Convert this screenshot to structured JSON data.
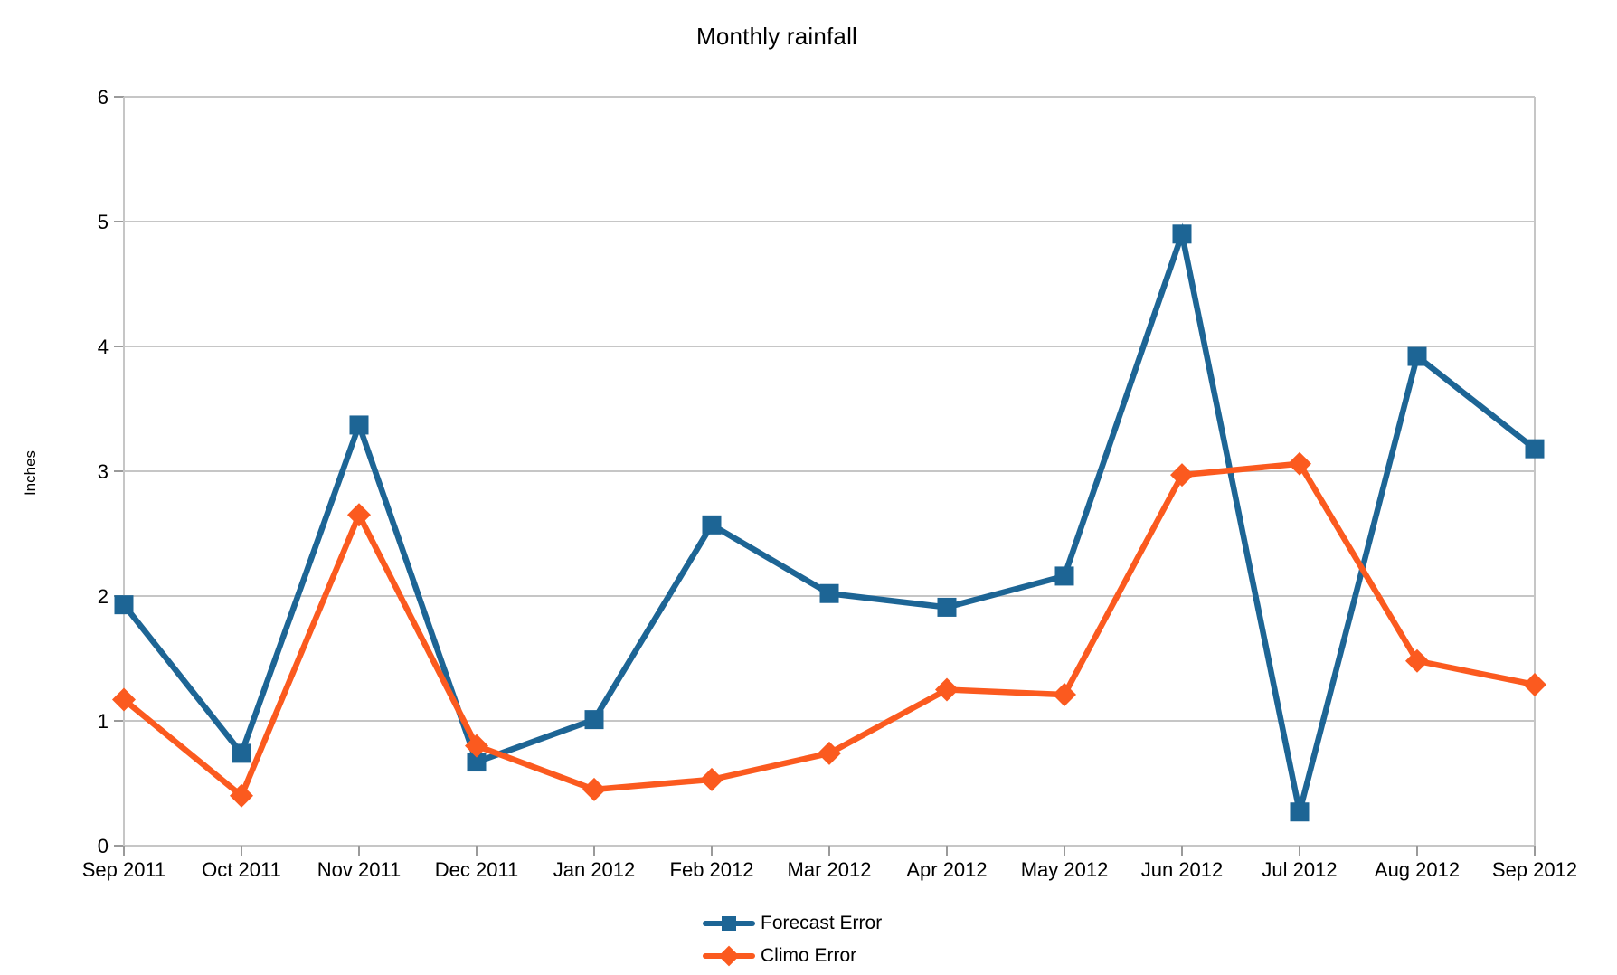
{
  "chart_data": {
    "type": "line",
    "title": "Monthly rainfall",
    "xlabel": "",
    "ylabel": "Inches",
    "ylim": [
      0,
      6
    ],
    "yticks": [
      0,
      1,
      2,
      3,
      4,
      5,
      6
    ],
    "grid": true,
    "legend_position": "bottom-center",
    "categories": [
      "Sep 2011",
      "Oct 2011",
      "Nov 2011",
      "Dec 2011",
      "Jan 2012",
      "Feb 2012",
      "Mar 2012",
      "Apr 2012",
      "May 2012",
      "Jun 2012",
      "Jul 2012",
      "Aug 2012",
      "Sep 2012"
    ],
    "series": [
      {
        "name": "Forecast Error",
        "marker": "square",
        "color": "#1d6595",
        "values": [
          1.93,
          0.74,
          3.37,
          0.67,
          1.01,
          2.57,
          2.02,
          1.91,
          2.16,
          4.9,
          0.27,
          3.92,
          3.18
        ]
      },
      {
        "name": "Climo Error",
        "marker": "diamond",
        "color": "#fb5a1f",
        "values": [
          1.17,
          0.4,
          2.65,
          0.8,
          0.45,
          0.53,
          0.74,
          1.25,
          1.21,
          2.97,
          3.06,
          1.48,
          1.29
        ]
      }
    ],
    "colors": {
      "grid": "#c6c6c6",
      "tick": "#9a9a9a",
      "text": "#000000",
      "background": "#ffffff"
    }
  }
}
